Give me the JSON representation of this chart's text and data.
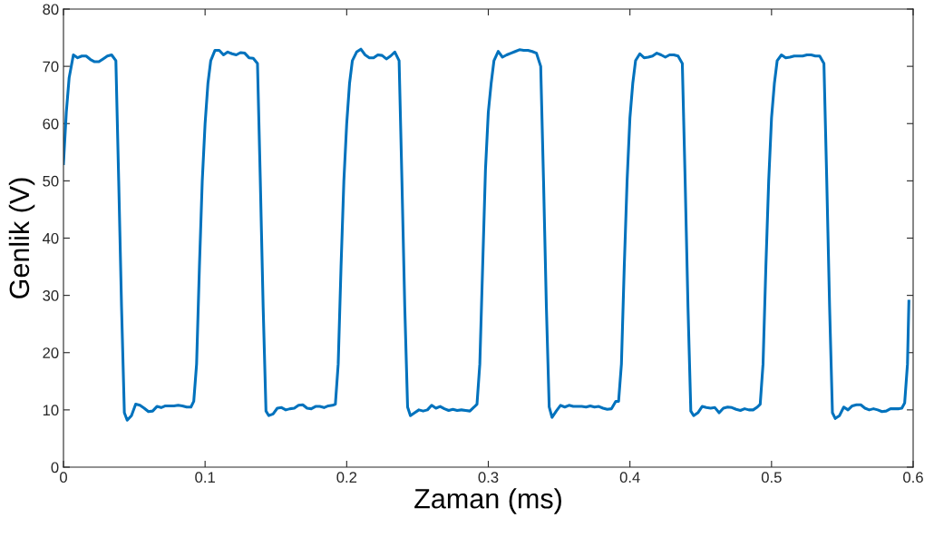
{
  "chart_data": {
    "type": "line",
    "xlabel": "Zaman (ms)",
    "ylabel": "Genlik (V)",
    "xlim": [
      0,
      0.6
    ],
    "xticks": [
      0,
      0.1,
      0.2,
      0.3,
      0.4,
      0.5,
      0.6
    ],
    "ylim": [
      0,
      80
    ],
    "yticks": [
      0,
      10,
      20,
      30,
      40,
      50,
      60,
      70,
      80
    ],
    "grid": false,
    "marker": "none",
    "line_style": "solid",
    "series": [
      {
        "color": "#0072bd",
        "x": [
          0,
          0.002,
          0.004,
          0.007,
          0.01,
          0.013,
          0.016,
          0.019,
          0.022,
          0.025,
          0.028,
          0.031,
          0.034,
          0.037,
          0.039,
          0.041,
          0.043,
          0.045,
          0.048,
          0.051,
          0.054,
          0.057,
          0.06,
          0.063,
          0.066,
          0.069,
          0.072,
          0.075,
          0.078,
          0.081,
          0.084,
          0.087,
          0.09,
          0.092,
          0.094,
          0.096,
          0.098,
          0.1,
          0.102,
          0.104,
          0.107,
          0.11,
          0.113,
          0.116,
          0.119,
          0.122,
          0.125,
          0.128,
          0.131,
          0.134,
          0.137,
          0.139,
          0.141,
          0.143,
          0.145,
          0.148,
          0.151,
          0.154,
          0.157,
          0.16,
          0.163,
          0.166,
          0.169,
          0.172,
          0.175,
          0.178,
          0.181,
          0.184,
          0.187,
          0.19,
          0.192,
          0.194,
          0.196,
          0.198,
          0.2,
          0.202,
          0.204,
          0.207,
          0.21,
          0.213,
          0.216,
          0.219,
          0.222,
          0.225,
          0.228,
          0.231,
          0.234,
          0.237,
          0.239,
          0.241,
          0.243,
          0.245,
          0.248,
          0.251,
          0.254,
          0.257,
          0.26,
          0.263,
          0.266,
          0.269,
          0.272,
          0.275,
          0.278,
          0.281,
          0.284,
          0.287,
          0.29,
          0.292,
          0.294,
          0.296,
          0.298,
          0.3,
          0.302,
          0.304,
          0.307,
          0.31,
          0.313,
          0.316,
          0.319,
          0.322,
          0.325,
          0.328,
          0.331,
          0.334,
          0.337,
          0.339,
          0.341,
          0.343,
          0.345,
          0.348,
          0.351,
          0.354,
          0.357,
          0.36,
          0.363,
          0.366,
          0.369,
          0.372,
          0.375,
          0.378,
          0.381,
          0.384,
          0.387,
          0.39,
          0.392,
          0.394,
          0.396,
          0.398,
          0.4,
          0.402,
          0.404,
          0.407,
          0.41,
          0.413,
          0.416,
          0.419,
          0.422,
          0.425,
          0.428,
          0.431,
          0.434,
          0.437,
          0.439,
          0.441,
          0.443,
          0.445,
          0.448,
          0.451,
          0.454,
          0.457,
          0.46,
          0.463,
          0.466,
          0.469,
          0.472,
          0.475,
          0.478,
          0.481,
          0.484,
          0.487,
          0.49,
          0.492,
          0.494,
          0.496,
          0.498,
          0.5,
          0.502,
          0.504,
          0.507,
          0.51,
          0.513,
          0.516,
          0.519,
          0.522,
          0.525,
          0.528,
          0.531,
          0.534,
          0.537,
          0.539,
          0.541,
          0.543,
          0.545,
          0.548,
          0.551,
          0.554,
          0.557,
          0.56,
          0.563,
          0.566,
          0.569,
          0.572,
          0.575,
          0.578,
          0.581,
          0.584,
          0.587,
          0.59,
          0.592,
          0.594,
          0.596,
          0.597
        ],
        "values": [
          53,
          62,
          68,
          72,
          71.5,
          71.8,
          71.8,
          71.2,
          70.8,
          70.8,
          71.3,
          71.8,
          72,
          71,
          50,
          28,
          9.5,
          8.2,
          9,
          11,
          10.8,
          10.3,
          9.7,
          9.8,
          10.6,
          10.4,
          10.7,
          10.7,
          10.7,
          10.8,
          10.7,
          10.5,
          10.5,
          11.5,
          18,
          35,
          50,
          60,
          67,
          71,
          72.8,
          72.8,
          72.0,
          72.5,
          72.2,
          72.0,
          72.4,
          72.3,
          71.5,
          71.4,
          70.5,
          50,
          28,
          9.8,
          9,
          9.3,
          10.3,
          10.4,
          10,
          10.2,
          10.3,
          10.8,
          10.9,
          10.3,
          10.2,
          10.6,
          10.6,
          10.4,
          10.7,
          10.8,
          11,
          18,
          35,
          50,
          60,
          67,
          71,
          72.5,
          73,
          72,
          71.5,
          71.5,
          72,
          71.9,
          71.3,
          71.8,
          72.5,
          71,
          50,
          28,
          10.5,
          9,
          9.5,
          10,
          9.8,
          10,
          10.8,
          10.3,
          10.6,
          10.2,
          9.9,
          10.1,
          9.9,
          10,
          9.9,
          9.8,
          10.5,
          11,
          18,
          35,
          52,
          62,
          67,
          71,
          72.6,
          71.6,
          72,
          72.3,
          72.6,
          72.9,
          72.8,
          72.8,
          72.6,
          72.3,
          70,
          50,
          28,
          10.5,
          8.7,
          9.8,
          10.8,
          10.5,
          10.8,
          10.6,
          10.6,
          10.6,
          10.5,
          10.7,
          10.5,
          10.6,
          10.3,
          10.1,
          10.2,
          11.5,
          11.5,
          18,
          35,
          50,
          61,
          67,
          71,
          72.2,
          71.5,
          71.6,
          71.8,
          72.3,
          72,
          71.6,
          72,
          72,
          71.8,
          70.5,
          50,
          28,
          9.8,
          9,
          9.5,
          10.6,
          10.4,
          10.3,
          10.4,
          9.5,
          10.3,
          10.5,
          10.4,
          10.1,
          9.9,
          10.2,
          10,
          10,
          10.5,
          11,
          18,
          35,
          50,
          61,
          67,
          71,
          72,
          71.5,
          71.6,
          71.8,
          71.8,
          71.8,
          72,
          72,
          71.8,
          71.8,
          70.5,
          50,
          28,
          9.5,
          8.5,
          9,
          10.5,
          10,
          10.7,
          10.9,
          10.9,
          10.3,
          10,
          10.2,
          10,
          9.7,
          9.8,
          10.2,
          10.2,
          10.2,
          10.3,
          11.2,
          18,
          29
        ]
      }
    ]
  }
}
